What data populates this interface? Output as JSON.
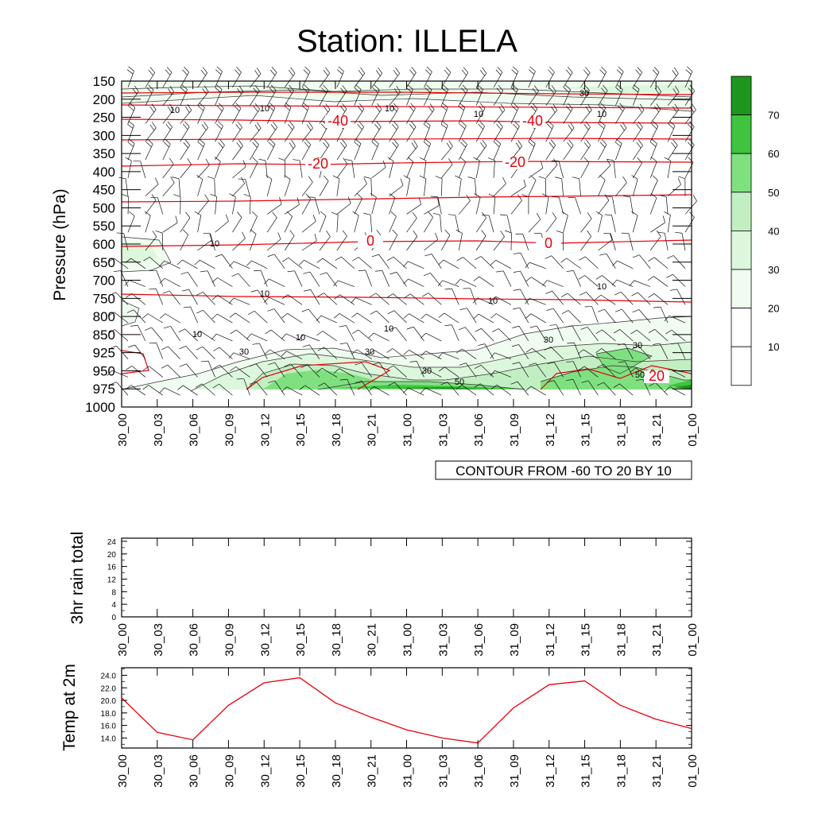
{
  "title": "Station: ILLELA",
  "colors": {
    "temp_line": "#e8000b",
    "wind_barb": "#000000",
    "rh_fill": [
      "#ffffff",
      "#ffffff",
      "#f0fcf0",
      "#dcf7dc",
      "#c2efc2",
      "#7fe07f",
      "#3fc43f",
      "#1e961e"
    ]
  },
  "main_panel": {
    "ylabel": "Pressure (hPa)",
    "y_ticks": [
      "150",
      "200",
      "250",
      "300",
      "350",
      "400",
      "450",
      "500",
      "550",
      "600",
      "650",
      "700",
      "750",
      "800",
      "850",
      "925",
      "950",
      "975",
      "1000"
    ],
    "x_ticks": [
      "30_00",
      "30_03",
      "30_06",
      "30_09",
      "30_12",
      "30_15",
      "30_18",
      "30_21",
      "31_00",
      "31_03",
      "31_06",
      "31_09",
      "31_12",
      "31_15",
      "31_18",
      "31_21",
      "01_00"
    ],
    "info_label": "CONTOUR FROM -60 TO 20 BY 10",
    "colorbar_labels": [
      "70",
      "60",
      "50",
      "40",
      "30",
      "20",
      "10"
    ],
    "temp_labels": [
      "-40",
      "-40",
      "-20",
      "-20",
      "0",
      "0",
      "20"
    ],
    "rh_labels": [
      "30",
      "10",
      "10",
      "10",
      "10",
      "10",
      "10",
      "10",
      "10",
      "10",
      "10",
      "10",
      "10",
      "30",
      "30",
      "30",
      "30",
      "30",
      "50",
      "50"
    ]
  },
  "rain_panel": {
    "ylabel": "3hr rain total",
    "y_ticks": [
      "0",
      "4",
      "8",
      "12",
      "16",
      "20",
      "24"
    ]
  },
  "temp_panel": {
    "ylabel": "Temp at 2m",
    "y_ticks": [
      "14.0",
      "16.0",
      "18.0",
      "20.0",
      "22.0",
      "24.0"
    ]
  },
  "chart_data": [
    {
      "type": "heatmap",
      "title": "Station: ILLELA",
      "ylabel": "Pressure (hPa)",
      "x": [
        "30_00",
        "30_03",
        "30_06",
        "30_09",
        "30_12",
        "30_15",
        "30_18",
        "30_21",
        "31_00",
        "31_03",
        "31_06",
        "31_09",
        "31_12",
        "31_15",
        "31_18",
        "31_21",
        "01_00"
      ],
      "y": [
        150,
        200,
        250,
        300,
        350,
        400,
        450,
        500,
        550,
        600,
        650,
        700,
        750,
        800,
        850,
        925,
        950,
        975,
        1000
      ],
      "fill_variable_levels": [
        10,
        20,
        30,
        40,
        50,
        60,
        70
      ],
      "temperature_contours": {
        "note": "CONTOUR FROM -60 TO 20 BY 10",
        "levels": [
          -60,
          -50,
          -40,
          -30,
          -20,
          -10,
          0,
          10,
          20
        ],
        "labeled": [
          -40,
          -20,
          0,
          20
        ]
      }
    },
    {
      "type": "line",
      "ylabel": "3hr rain total",
      "x": [
        "30_00",
        "30_03",
        "30_06",
        "30_09",
        "30_12",
        "30_15",
        "30_18",
        "30_21",
        "31_00",
        "31_03",
        "31_06",
        "31_09",
        "31_12",
        "31_15",
        "31_18",
        "31_21",
        "01_00"
      ],
      "ylim": [
        0,
        24
      ],
      "series": []
    },
    {
      "type": "line",
      "ylabel": "Temp at 2m",
      "x": [
        "30_00",
        "30_03",
        "30_06",
        "30_09",
        "30_12",
        "30_15",
        "30_18",
        "30_21",
        "31_00",
        "31_03",
        "31_06",
        "31_09",
        "31_12",
        "31_15",
        "31_18",
        "31_21",
        "01_00"
      ],
      "ylim": [
        12.4,
        25.2
      ],
      "series": [
        {
          "values": [
            20.4,
            14.9,
            13.7,
            19.2,
            22.8,
            23.6,
            19.6,
            17.3,
            15.3,
            14.0,
            13.2,
            18.8,
            22.5,
            23.1,
            19.2,
            17.0,
            15.5
          ]
        }
      ]
    }
  ]
}
